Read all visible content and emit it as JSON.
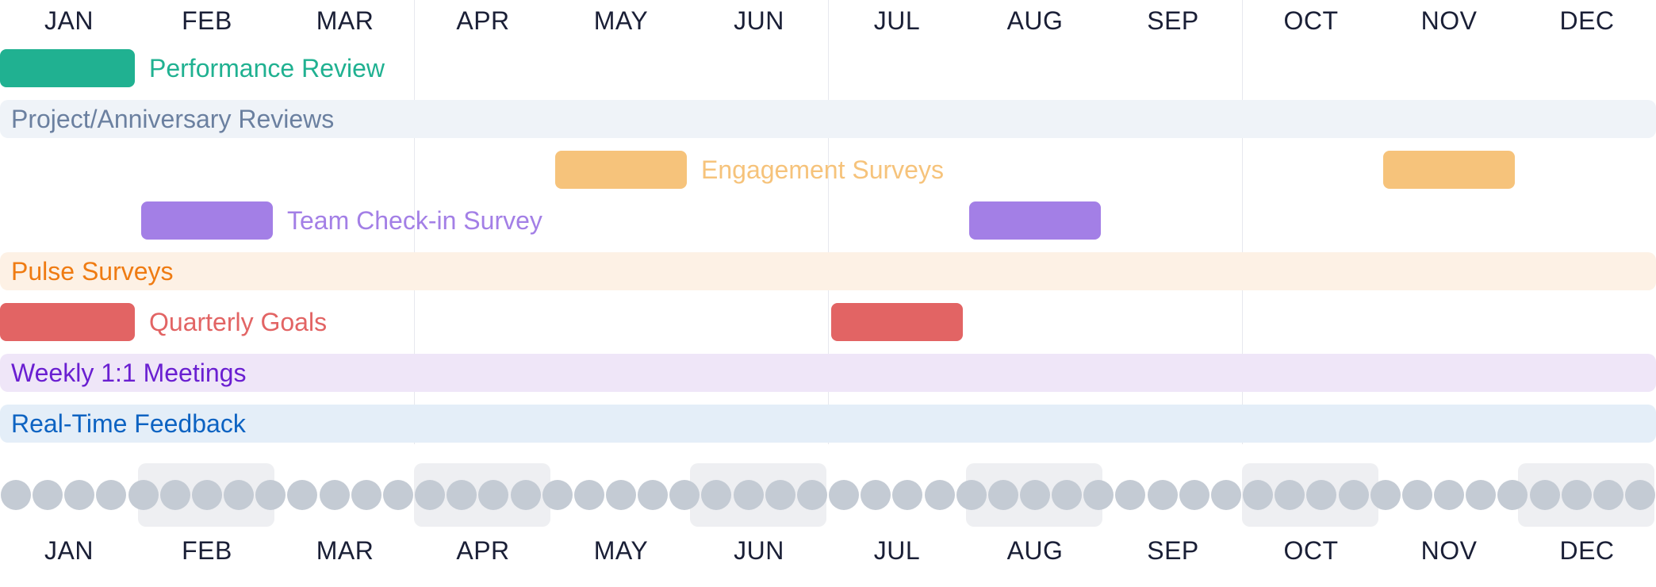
{
  "months": [
    "JAN",
    "FEB",
    "MAR",
    "APR",
    "MAY",
    "JUN",
    "JUL",
    "AUG",
    "SEP",
    "OCT",
    "NOV",
    "DEC"
  ],
  "weeks_per_year": 52,
  "rows": [
    {
      "name": "performance-review",
      "label": "Performance Review",
      "kind": "bar",
      "color": "#20b191",
      "label_color": "#20b191",
      "periods": [
        {
          "start_month": 1,
          "end_month": 1
        }
      ],
      "label_after_period": 0
    },
    {
      "name": "project-anniversary-reviews",
      "label": "Project/Anniversary Reviews",
      "kind": "band",
      "color": "#eff3f8",
      "label_color": "#6b80a0"
    },
    {
      "name": "engagement-surveys",
      "label": "Engagement Surveys",
      "kind": "bar",
      "color": "#f6c37b",
      "label_color": "#f6c37b",
      "periods": [
        {
          "start_month": 5,
          "end_month": 5
        },
        {
          "start_month": 11,
          "end_month": 11
        }
      ],
      "label_after_period": 0
    },
    {
      "name": "team-check-in-survey",
      "label": "Team Check-in Survey",
      "kind": "bar",
      "color": "#a37fe6",
      "label_color": "#a37fe6",
      "periods": [
        {
          "start_month": 2,
          "end_month": 2
        },
        {
          "start_month": 8,
          "end_month": 8
        }
      ],
      "label_after_period": 0
    },
    {
      "name": "pulse-surveys",
      "label": "Pulse Surveys",
      "kind": "band",
      "color": "#fdf1e5",
      "label_color": "#ef7b12"
    },
    {
      "name": "quarterly-goals",
      "label": "Quarterly Goals",
      "kind": "bar",
      "color": "#e26464",
      "label_color": "#e26464",
      "periods": [
        {
          "start_month": 1,
          "end_month": 1
        },
        {
          "start_month": 7,
          "end_month": 7
        }
      ],
      "label_after_period": 0
    },
    {
      "name": "weekly-1-1-meetings",
      "label": "Weekly 1:1 Meetings",
      "kind": "band",
      "color": "#efe6f8",
      "label_color": "#6a1fd1"
    },
    {
      "name": "real-time-feedback",
      "label": "Real-Time Feedback",
      "kind": "band",
      "color": "#e4eef8",
      "label_color": "#0d63c2"
    }
  ],
  "shaded_week_month_pairs": [
    [
      "FEB"
    ],
    [
      "APR"
    ],
    [
      "JUN"
    ],
    [
      "AUG"
    ],
    [
      "OCT"
    ],
    [
      "DEC"
    ]
  ]
}
